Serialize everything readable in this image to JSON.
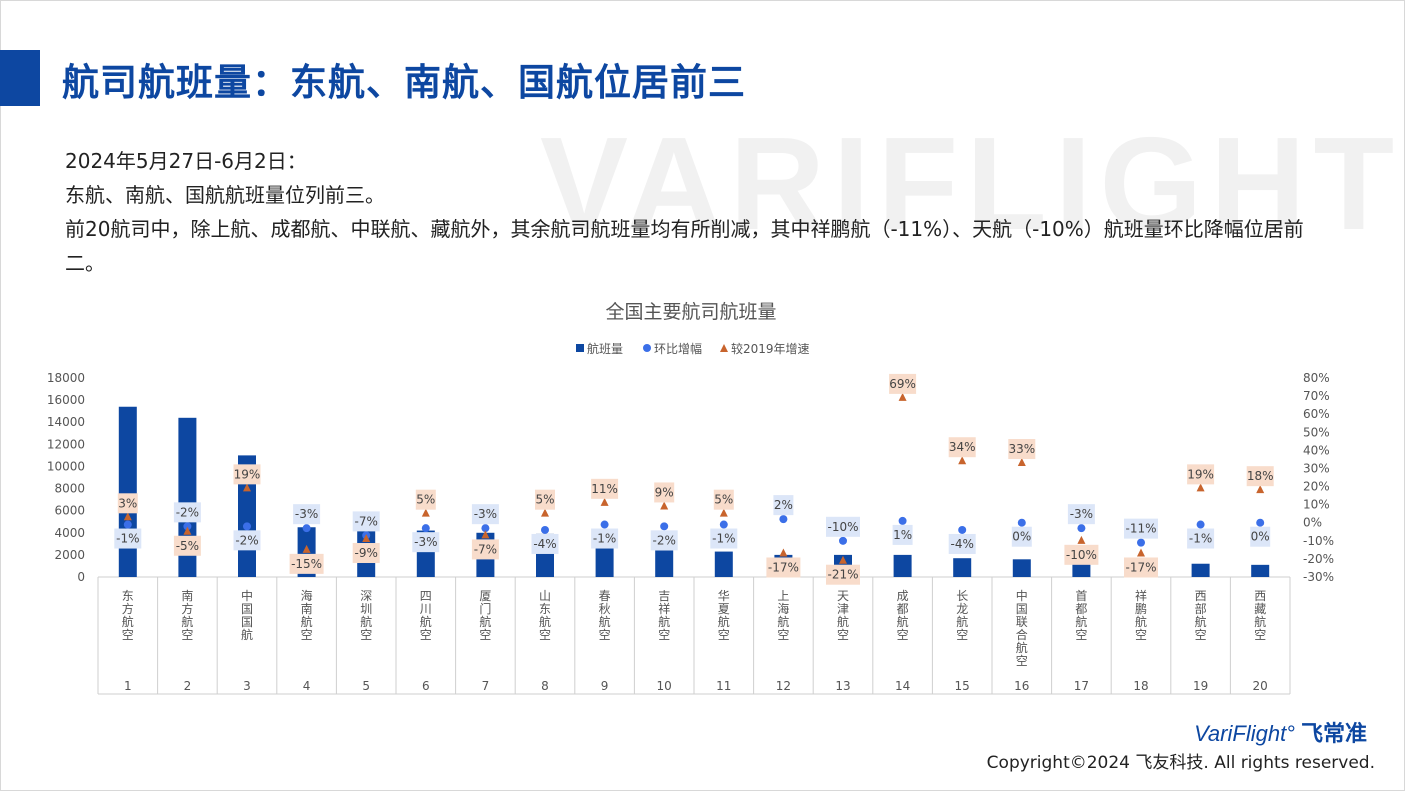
{
  "header": {
    "title": "航司航班量：东航、南航、国航位居前三"
  },
  "watermark": "VARIFLIGHT",
  "description": {
    "line1": "2024年5月27日-6月2日：",
    "line2": "东航、南航、国航航班量位列前三。",
    "line3": "前20航司中，除上航、成都航、中联航、藏航外，其余航司航班量均有所削减，其中祥鹏航（-11%）、天航（-10%）航班量环比降幅位居前二。"
  },
  "footer": {
    "brand": "VariFlight°",
    "brand_zh": "飞常准",
    "copyright": "Copyright©2024 飞友科技. All rights reserved."
  },
  "colors": {
    "bar": "#0d47a1",
    "dot": "#3b6fe8",
    "triangle": "#c8642d",
    "dot_label_bg": "#dce6f8",
    "tri_label_bg": "#f8dccb",
    "title": "#0d47a1"
  },
  "chart_data": {
    "type": "bar",
    "title": "全国主要航司航班量",
    "legend": [
      "航班量",
      "环比增幅",
      "较2019年增速"
    ],
    "legend_position": "top",
    "categories": [
      "东方航空",
      "南方航空",
      "中国国航",
      "海南航空",
      "深圳航空",
      "四川航空",
      "厦门航空",
      "山东航空",
      "春秋航空",
      "吉祥航空",
      "华夏航空",
      "上海航空",
      "天津航空",
      "成都航空",
      "长龙航空",
      "中国联合航空",
      "首都航空",
      "祥鹏航空",
      "西部航空",
      "西藏航空"
    ],
    "ranks": [
      "1",
      "2",
      "3",
      "4",
      "5",
      "6",
      "7",
      "8",
      "9",
      "10",
      "11",
      "12",
      "13",
      "14",
      "15",
      "16",
      "17",
      "18",
      "19",
      "20"
    ],
    "series": [
      {
        "name": "航班量",
        "type": "bar",
        "axis": "left",
        "values": [
          15400,
          14400,
          11000,
          4500,
          4200,
          4200,
          4000,
          3900,
          2600,
          2400,
          2300,
          2000,
          2000,
          2000,
          1700,
          1600,
          1600,
          1200,
          1200,
          1100
        ]
      },
      {
        "name": "环比增幅",
        "type": "scatter",
        "axis": "right",
        "values": [
          -1,
          -2,
          -2,
          -3,
          -7,
          -3,
          -3,
          -4,
          -1,
          -2,
          -1,
          2,
          -10,
          1,
          -4,
          0,
          -3,
          -11,
          -1,
          0
        ],
        "labels": [
          "-1%",
          "-2%",
          "-2%",
          "-3%",
          "-7%",
          "-3%",
          "-3%",
          "-4%",
          "-1%",
          "-2%",
          "-1%",
          "2%",
          "-10%",
          "1%",
          "-4%",
          "0%",
          "-3%",
          "-11%",
          "-1%",
          "0%"
        ]
      },
      {
        "name": "较2019年增速",
        "type": "scatter",
        "axis": "right",
        "values": [
          3,
          -5,
          19,
          -15,
          -9,
          5,
          -7,
          5,
          11,
          9,
          5,
          -17,
          -21,
          69,
          34,
          33,
          -10,
          -17,
          19,
          18
        ],
        "labels": [
          "3%",
          "-5%",
          "19%",
          "-15%",
          "-9%",
          "5%",
          "-7%",
          "5%",
          "11%",
          "9%",
          "5%",
          "-17%",
          "-21%",
          "69%",
          "34%",
          "33%",
          "-10%",
          "-17%",
          "19%",
          "18%"
        ]
      }
    ],
    "y_left": {
      "min": 0,
      "max": 18000,
      "ticks": [
        "0",
        "2000",
        "4000",
        "6000",
        "8000",
        "10000",
        "12000",
        "14000",
        "16000",
        "18000"
      ]
    },
    "y_right": {
      "min": -30,
      "max": 80,
      "ticks": [
        "-30%",
        "-20%",
        "-10%",
        "0%",
        "10%",
        "20%",
        "30%",
        "40%",
        "50%",
        "60%",
        "70%",
        "80%"
      ]
    },
    "grid": false
  }
}
